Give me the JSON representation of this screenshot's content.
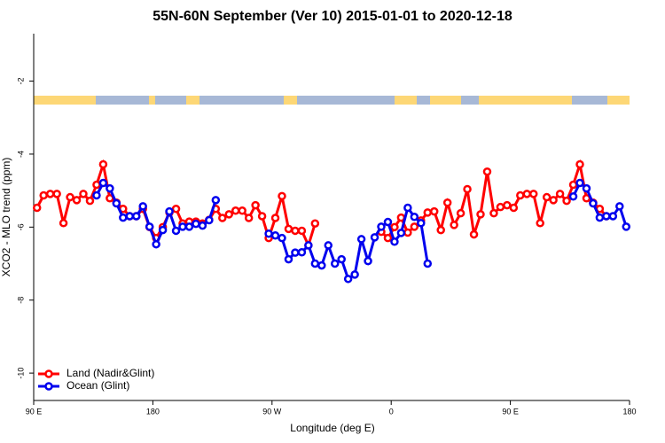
{
  "chart_data": {
    "type": "line",
    "title": "55N-60N September (Ver 10)   2015-01-01 to 2020-12-18",
    "xlabel": "Longitude (deg E)",
    "ylabel": "XCO2 - MLO trend (ppm)",
    "xlim": [
      90,
      540
    ],
    "ylim": [
      -10.75,
      -0.7
    ],
    "xticks": [
      {
        "value": 90,
        "label": "90 E"
      },
      180,
      {
        "value": 270,
        "label": "90 W"
      },
      {
        "value": 360,
        "label": "0"
      },
      {
        "value": 450,
        "label": "90 E"
      },
      {
        "value": 540,
        "label": "180"
      }
    ],
    "yticks": [
      -10,
      -8,
      -6,
      -4,
      -2
    ],
    "legend": "bottom-left",
    "x": [
      92.5,
      97.5,
      102.5,
      107.5,
      112.5,
      117.5,
      122.5,
      127.5,
      132.5,
      137.5,
      142.5,
      147.5,
      152.5,
      157.5,
      162.5,
      167.5,
      172.5,
      177.5,
      182.5,
      187.5,
      192.5,
      197.5,
      202.5,
      207.5,
      212.5,
      217.5,
      222.5,
      227.5,
      232.5,
      237.5,
      242.5,
      247.5,
      252.5,
      257.5,
      262.5,
      267.5,
      272.5,
      277.5,
      282.5,
      287.5,
      292.5,
      297.5,
      302.5,
      307.5,
      312.5,
      317.5,
      322.5,
      327.5,
      332.5,
      337.5,
      342.5,
      347.5,
      352.5,
      357.5,
      362.5,
      367.5,
      372.5,
      377.5,
      382.5,
      387.5,
      392.5,
      397.5,
      402.5,
      407.5,
      412.5,
      417.5,
      422.5,
      427.5,
      432.5,
      437.5,
      442.5,
      447.5,
      452.5,
      457.5,
      462.5,
      467.5,
      472.5,
      477.5,
      482.5,
      487.5,
      492.5,
      497.5,
      502.5,
      507.5,
      512.5,
      517.5,
      522.5,
      527.5,
      532.5,
      537.5
    ],
    "series": [
      {
        "name": "Land (Nadir&Glint)",
        "color": "#ff0000",
        "values": [
          -5.47,
          -5.13,
          -5.09,
          -5.09,
          -5.89,
          -5.18,
          -5.26,
          -5.09,
          -5.28,
          -4.84,
          -4.28,
          -5.21,
          -5.33,
          -5.5,
          -5.7,
          -5.7,
          -5.5,
          -6.0,
          -6.3,
          -6.0,
          -5.6,
          -5.5,
          -5.9,
          -5.85,
          -5.85,
          -5.9,
          -5.8,
          -5.5,
          -5.75,
          -5.65,
          -5.55,
          -5.55,
          -5.75,
          -5.4,
          -5.7,
          -6.3,
          -5.75,
          -5.15,
          -6.05,
          -6.1,
          -6.1,
          -6.5,
          -5.9,
          null,
          null,
          null,
          null,
          null,
          null,
          null,
          null,
          null,
          -6.13,
          -6.3,
          -6.0,
          -5.74,
          -6.15,
          -5.99,
          -5.82,
          -5.6,
          -5.57,
          -6.08,
          -5.33,
          -5.94,
          -5.62,
          -4.96,
          -6.2,
          -5.65,
          -4.48,
          -5.62,
          -5.45,
          -5.4,
          -5.47,
          -5.13,
          -5.09,
          -5.09,
          -5.89,
          -5.18,
          -5.26,
          -5.09,
          -5.28,
          -4.84,
          -4.28,
          -5.21,
          -5.33,
          -5.5,
          -5.7,
          null,
          null,
          null
        ]
      },
      {
        "name": "Ocean (Glint)",
        "color": "#0000ee",
        "values": [
          null,
          null,
          null,
          null,
          null,
          null,
          null,
          null,
          null,
          -5.13,
          -4.79,
          -4.94,
          -5.35,
          -5.74,
          -5.7,
          -5.7,
          -5.43,
          -5.99,
          -6.47,
          -6.08,
          -5.57,
          -6.1,
          -5.99,
          -5.99,
          -5.91,
          -5.96,
          -5.81,
          -5.26,
          null,
          null,
          null,
          null,
          null,
          null,
          null,
          -6.18,
          -6.23,
          -6.3,
          -6.88,
          -6.7,
          -6.69,
          -6.5,
          -7.0,
          -7.05,
          -6.5,
          -7.0,
          -6.88,
          -7.42,
          -7.3,
          -6.33,
          -6.93,
          -6.28,
          -5.99,
          -5.86,
          -6.4,
          -6.16,
          -5.47,
          -5.72,
          -5.89,
          -7.0,
          null,
          null,
          null,
          null,
          null,
          null,
          null,
          null,
          null,
          null,
          null,
          null,
          null,
          null,
          null,
          null,
          null,
          null,
          null,
          null,
          null,
          -5.16,
          -4.79,
          -4.94,
          -5.35,
          -5.74,
          -5.7,
          -5.7,
          -5.43,
          -5.99
        ]
      }
    ]
  }
}
